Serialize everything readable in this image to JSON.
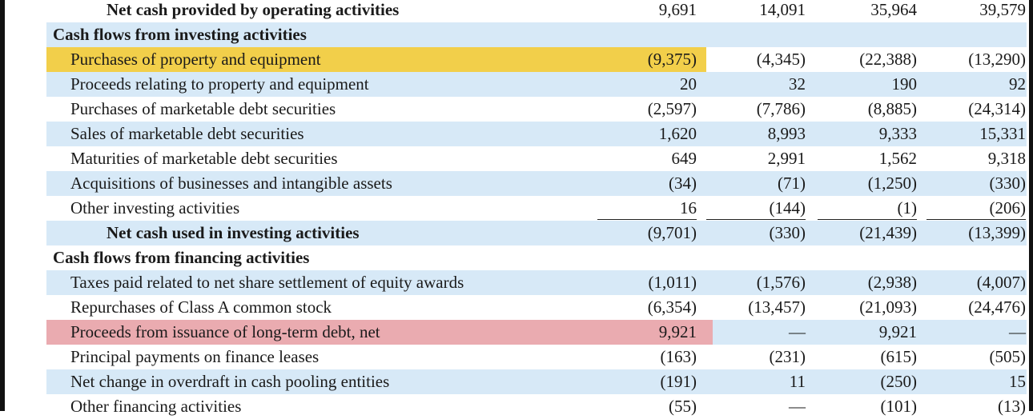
{
  "table": {
    "rows": [
      {
        "label": "Net cash provided by operating activities",
        "values": [
          "9,691",
          "14,091",
          "35,964",
          "39,579"
        ]
      },
      {
        "label": "Cash flows from investing activities"
      },
      {
        "label": "Purchases of property and equipment",
        "values": [
          "(9,375)",
          "(4,345)",
          "(22,388)",
          "(13,290)"
        ]
      },
      {
        "label": "Proceeds relating to property and equipment",
        "values": [
          "20",
          "32",
          "190",
          "92"
        ]
      },
      {
        "label": "Purchases of marketable debt securities",
        "values": [
          "(2,597)",
          "(7,786)",
          "(8,885)",
          "(24,314)"
        ]
      },
      {
        "label": "Sales of marketable debt securities",
        "values": [
          "1,620",
          "8,993",
          "9,333",
          "15,331"
        ]
      },
      {
        "label": "Maturities of marketable debt securities",
        "values": [
          "649",
          "2,991",
          "1,562",
          "9,318"
        ]
      },
      {
        "label": "Acquisitions of businesses and intangible assets",
        "values": [
          "(34)",
          "(71)",
          "(1,250)",
          "(330)"
        ]
      },
      {
        "label": "Other investing activities",
        "values": [
          "16",
          "(144)",
          "(1)",
          "(206)"
        ]
      },
      {
        "label": "Net cash used in investing activities",
        "values": [
          "(9,701)",
          "(330)",
          "(21,439)",
          "(13,399)"
        ]
      },
      {
        "label": "Cash flows from financing activities"
      },
      {
        "label": "Taxes paid related to net share settlement of equity awards",
        "values": [
          "(1,011)",
          "(1,576)",
          "(2,938)",
          "(4,007)"
        ]
      },
      {
        "label": "Repurchases of Class A common stock",
        "values": [
          "(6,354)",
          "(13,457)",
          "(21,093)",
          "(24,476)"
        ]
      },
      {
        "label": "Proceeds from issuance of long-term debt, net",
        "values": [
          "9,921",
          "—",
          "9,921",
          "—"
        ]
      },
      {
        "label": "Principal payments on finance leases",
        "values": [
          "(163)",
          "(231)",
          "(615)",
          "(505)"
        ]
      },
      {
        "label": "Net change in overdraft in cash pooling entities",
        "values": [
          "(191)",
          "11",
          "(250)",
          "15"
        ]
      },
      {
        "label": "Other financing activities",
        "values": [
          "(55)",
          "—",
          "(101)",
          "(13)"
        ]
      }
    ]
  }
}
